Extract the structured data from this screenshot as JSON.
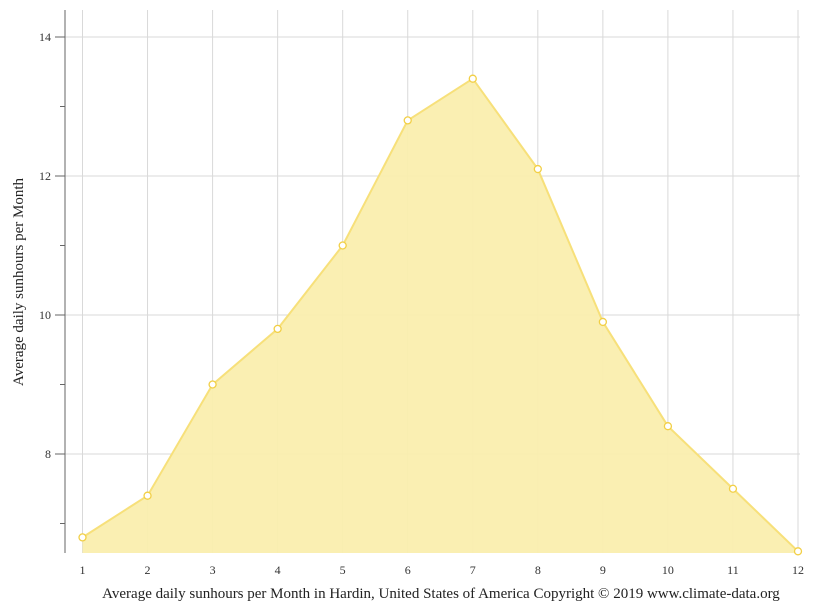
{
  "chart_data": {
    "type": "area",
    "title": "",
    "xlabel": "Average daily sunhours per Month in Hardin, United States of America Copyright © 2019 www.climate-data.org",
    "ylabel": "Average daily sunhours per Month",
    "categories": [
      "1",
      "2",
      "3",
      "4",
      "5",
      "6",
      "7",
      "8",
      "9",
      "10",
      "11",
      "12"
    ],
    "series": [
      {
        "name": "Average daily sunhours",
        "values": [
          6.8,
          7.4,
          9.0,
          9.8,
          11.0,
          12.8,
          13.4,
          12.1,
          9.9,
          8.4,
          7.5,
          6.6
        ],
        "color": "#f7e07a"
      }
    ],
    "y_ticks": [
      "8",
      "10",
      "12",
      "14"
    ],
    "ylim": [
      6.6,
      14.4
    ],
    "grid": true,
    "legend": "none"
  },
  "colors": {
    "fill": "#faeeae",
    "line": "#f7e07a",
    "marker_stroke": "#f2cf45",
    "grid": "#d9d9d9",
    "axis": "#666666"
  }
}
